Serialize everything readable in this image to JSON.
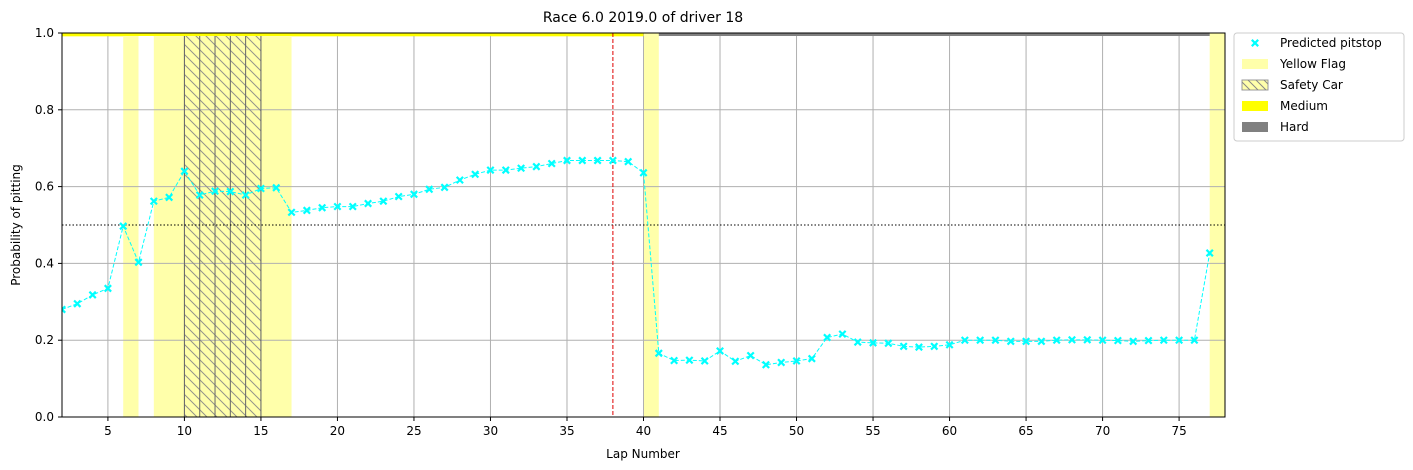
{
  "chart_data": {
    "type": "scatter",
    "title": "Race 6.0 2019.0 of driver 18",
    "xlabel": "Lap Number",
    "ylabel": "Probability of pitting",
    "xlim": [
      2,
      78
    ],
    "ylim": [
      0,
      1
    ],
    "xticks": [
      5,
      10,
      15,
      20,
      25,
      30,
      35,
      40,
      45,
      50,
      55,
      60,
      65,
      70,
      75
    ],
    "yticks": [
      0.0,
      0.2,
      0.4,
      0.6,
      0.8,
      1.0
    ],
    "ytick_labels": [
      "0.0",
      "0.2",
      "0.4",
      "0.6",
      "0.8",
      "1.0"
    ],
    "grid": true,
    "threshold": 0.5,
    "actual_pitstop_lap": 38,
    "legend_position": "outside-top-right",
    "series": [
      {
        "name": "Predicted pitstop",
        "color": "#00ffff",
        "marker": "x",
        "x": [
          2,
          3,
          4,
          5,
          6,
          7,
          8,
          9,
          10,
          11,
          12,
          13,
          14,
          15,
          16,
          17,
          18,
          19,
          20,
          21,
          22,
          23,
          24,
          25,
          26,
          27,
          28,
          29,
          30,
          31,
          32,
          33,
          34,
          35,
          36,
          37,
          38,
          39,
          40,
          41,
          42,
          43,
          44,
          45,
          46,
          47,
          48,
          49,
          50,
          51,
          52,
          53,
          54,
          55,
          56,
          57,
          58,
          59,
          60,
          61,
          62,
          63,
          64,
          65,
          66,
          67,
          68,
          69,
          70,
          71,
          72,
          73,
          74,
          75,
          76,
          77
        ],
        "y": [
          0.28,
          0.295,
          0.318,
          0.335,
          0.497,
          0.403,
          0.562,
          0.572,
          0.64,
          0.578,
          0.588,
          0.587,
          0.578,
          0.595,
          0.597,
          0.533,
          0.538,
          0.545,
          0.548,
          0.548,
          0.556,
          0.562,
          0.574,
          0.58,
          0.593,
          0.598,
          0.617,
          0.632,
          0.643,
          0.643,
          0.648,
          0.652,
          0.66,
          0.668,
          0.668,
          0.668,
          0.668,
          0.665,
          0.636,
          0.166,
          0.147,
          0.148,
          0.146,
          0.172,
          0.145,
          0.16,
          0.136,
          0.142,
          0.146,
          0.152,
          0.207,
          0.216,
          0.195,
          0.193,
          0.192,
          0.184,
          0.182,
          0.184,
          0.188,
          0.2,
          0.2,
          0.2,
          0.197,
          0.197,
          0.197,
          0.2,
          0.201,
          0.201,
          0.2,
          0.199,
          0.197,
          0.199,
          0.2,
          0.2,
          0.2,
          0.427
        ]
      }
    ],
    "yellow_flag_laps": [
      [
        2,
        6
      ],
      [
        6,
        7
      ],
      [
        8,
        17
      ],
      [
        17,
        40
      ],
      [
        40,
        41
      ],
      [
        77,
        78
      ]
    ],
    "yellow_flag_full_laps": [
      [
        6,
        7
      ],
      [
        8,
        17
      ],
      [
        40,
        41
      ],
      [
        77,
        78
      ]
    ],
    "safety_car_laps": [
      [
        10,
        15
      ]
    ],
    "tyre_stints": [
      {
        "compound": "Medium",
        "from": 2,
        "to": 40,
        "color": "#ffff00"
      },
      {
        "compound": "Hard",
        "from": 41,
        "to": 77,
        "color": "#808080"
      }
    ],
    "legend": [
      {
        "label": "Predicted pitstop",
        "kind": "marker",
        "color": "#00ffff"
      },
      {
        "label": "Yellow Flag",
        "kind": "patch",
        "color": "#ffffaa"
      },
      {
        "label": "Safety Car",
        "kind": "hatch",
        "color": "#ffffaa"
      },
      {
        "label": "Medium",
        "kind": "patch",
        "color": "#ffff00"
      },
      {
        "label": "Hard",
        "kind": "patch",
        "color": "#808080"
      }
    ]
  }
}
